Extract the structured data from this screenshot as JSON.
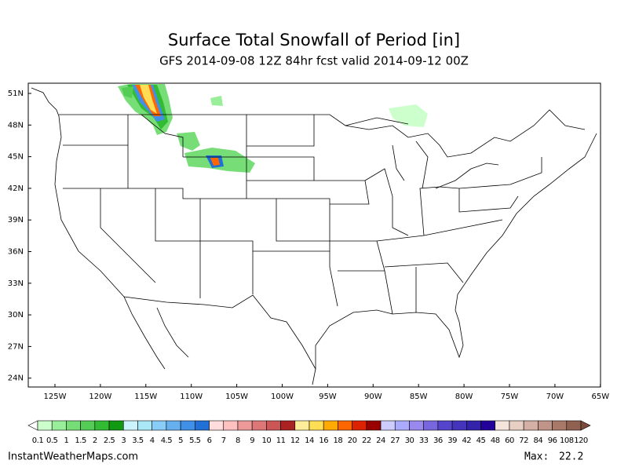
{
  "title": "Surface Total Snowfall of Period [in]",
  "subtitle": "GFS 2014-09-08 12Z 84hr fcst valid 2014-09-12 00Z",
  "map": {
    "lat_labels": [
      "51N",
      "48N",
      "45N",
      "42N",
      "39N",
      "36N",
      "33N",
      "30N",
      "27N",
      "24N"
    ],
    "lon_labels": [
      "125W",
      "120W",
      "115W",
      "110W",
      "105W",
      "100W",
      "95W",
      "90W",
      "85W",
      "80W",
      "75W",
      "70W",
      "65W"
    ]
  },
  "colorbar": {
    "labels": [
      "0.1",
      "0.5",
      "1",
      "1.5",
      "2",
      "2.5",
      "3",
      "3.5",
      "4",
      "4.5",
      "5",
      "5.5",
      "6",
      "7",
      "8",
      "9",
      "10",
      "11",
      "12",
      "14",
      "16",
      "18",
      "20",
      "22",
      "24",
      "27",
      "30",
      "33",
      "36",
      "39",
      "42",
      "45",
      "48",
      "60",
      "72",
      "84",
      "96",
      "108",
      "120"
    ],
    "colors": [
      "#ffffff",
      "#ccffcc",
      "#99ee99",
      "#77dd77",
      "#55cc55",
      "#33bb33",
      "#119911",
      "#ccf4ff",
      "#aae8f8",
      "#88ccf8",
      "#66b0f0",
      "#4090e8",
      "#2070d8",
      "#ffdddd",
      "#ffc0c0",
      "#ee9999",
      "#dd7777",
      "#cc5555",
      "#aa2222",
      "#ffee99",
      "#ffdd55",
      "#ffaa00",
      "#ff6600",
      "#dd2200",
      "#990000",
      "#ccccff",
      "#aaaaff",
      "#9988ee",
      "#7766dd",
      "#5544cc",
      "#4433bb",
      "#3322aa",
      "#220099",
      "#f4e4dc",
      "#e8cfc4",
      "#d4b0a4",
      "#c09488",
      "#a87868",
      "#906050",
      "#7a4a3a"
    ]
  },
  "footer": {
    "source": "InstantWeatherMaps.com",
    "max_label": "Max:",
    "max_value": 22.2
  }
}
